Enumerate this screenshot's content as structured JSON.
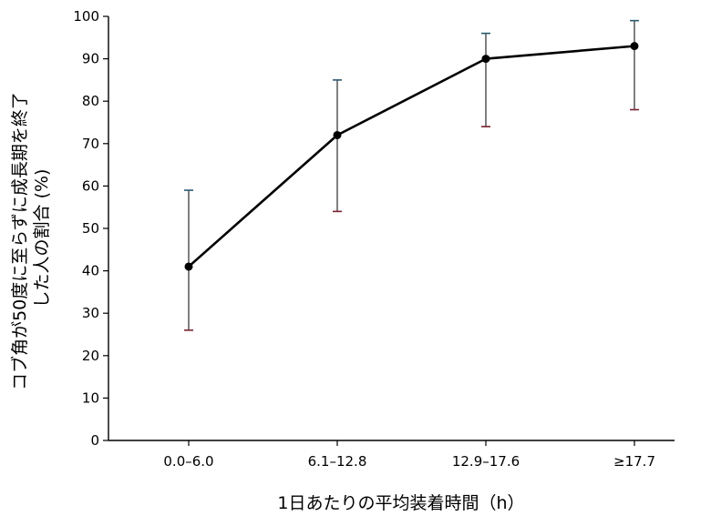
{
  "chart_data": {
    "type": "line",
    "title": "",
    "xlabel": "1日あたりの平均装着時間（h）",
    "ylabel_lines": [
      "コブ角が50度に至らずに成長期を終了",
      "した人の割合 (%)"
    ],
    "categories": [
      "0.0–6.0",
      "6.1–12.8",
      "12.9–17.6",
      "≥17.7"
    ],
    "series": [
      {
        "values": [
          41,
          72,
          90,
          93
        ],
        "error_low": [
          26,
          54,
          74,
          78
        ],
        "error_high": [
          59,
          85,
          96,
          99
        ]
      }
    ],
    "ylim": [
      0,
      100
    ],
    "yticks": [
      0,
      10,
      20,
      30,
      40,
      50,
      60,
      70,
      80,
      90,
      100
    ],
    "grid": false,
    "legend": "none",
    "colors": {
      "line": "#000000",
      "point": "#000000",
      "whisker": "#000000",
      "cap_top": "#2b5a6e",
      "cap_bottom": "#7a2230"
    }
  }
}
